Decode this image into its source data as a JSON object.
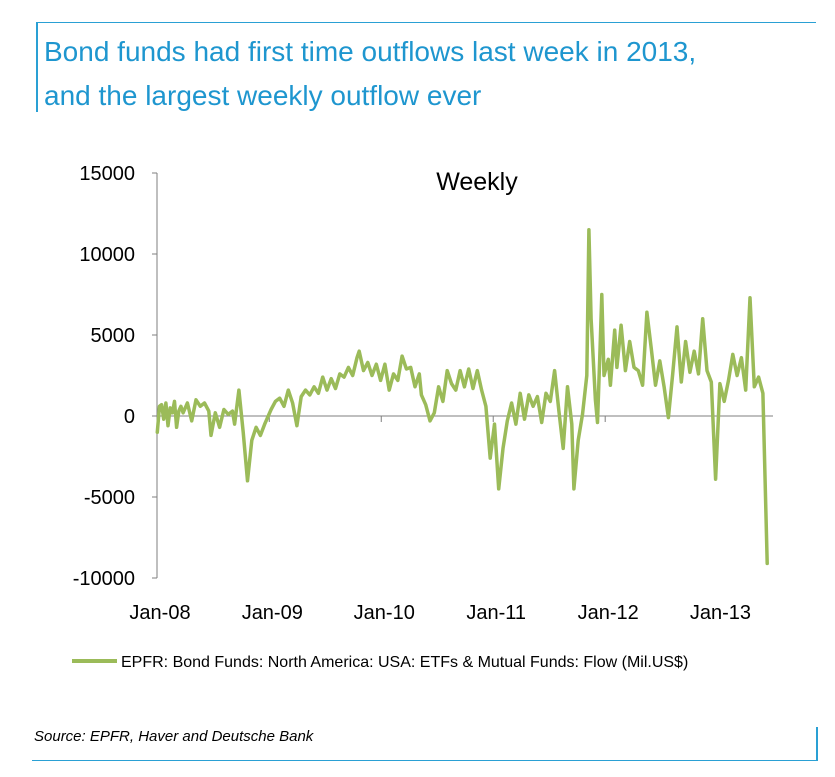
{
  "header": {
    "title_line1": "Bond funds had first time outflows last week in 2013,",
    "title_line2": "and the largest weekly outflow ever"
  },
  "source": "Source: EPFR, Haver and Deutsche Bank",
  "colors": {
    "accent": "#1e96cf",
    "series": "#9bbb59"
  },
  "chart_data": {
    "type": "line",
    "title": "Weekly",
    "xlabel": "",
    "ylabel": "",
    "ylim": [
      -10000,
      15000
    ],
    "y_ticks": [
      "15000",
      "10000",
      "5000",
      "0",
      "-5000",
      "-10000"
    ],
    "x_ticks": [
      "Jan-08",
      "Jan-09",
      "Jan-10",
      "Jan-11",
      "Jan-12",
      "Jan-13"
    ],
    "grid": false,
    "legend_position": "bottom",
    "series": [
      {
        "name": "EPFR: Bond Funds: North America: USA: ETFs & Mutual Funds: Flow (Mil.US$)",
        "points": [
          [
            "2008-01-02",
            -1000
          ],
          [
            "2008-01-09",
            600
          ],
          [
            "2008-01-16",
            700
          ],
          [
            "2008-01-23",
            -200
          ],
          [
            "2008-01-30",
            800
          ],
          [
            "2008-02-06",
            -600
          ],
          [
            "2008-02-13",
            500
          ],
          [
            "2008-02-20",
            200
          ],
          [
            "2008-02-27",
            900
          ],
          [
            "2008-03-05",
            -700
          ],
          [
            "2008-03-12",
            300
          ],
          [
            "2008-03-19",
            600
          ],
          [
            "2008-03-26",
            200
          ],
          [
            "2008-04-09",
            800
          ],
          [
            "2008-04-23",
            -300
          ],
          [
            "2008-05-07",
            1000
          ],
          [
            "2008-05-21",
            600
          ],
          [
            "2008-06-04",
            800
          ],
          [
            "2008-06-18",
            300
          ],
          [
            "2008-06-25",
            -1200
          ],
          [
            "2008-07-09",
            200
          ],
          [
            "2008-07-23",
            -700
          ],
          [
            "2008-08-06",
            400
          ],
          [
            "2008-08-20",
            100
          ],
          [
            "2008-09-03",
            300
          ],
          [
            "2008-09-10",
            -500
          ],
          [
            "2008-09-24",
            1600
          ],
          [
            "2008-10-08",
            -1000
          ],
          [
            "2008-10-22",
            -4000
          ],
          [
            "2008-11-05",
            -1500
          ],
          [
            "2008-11-19",
            -700
          ],
          [
            "2008-12-03",
            -1200
          ],
          [
            "2008-12-17",
            -500
          ],
          [
            "2009-01-07",
            400
          ],
          [
            "2009-01-21",
            900
          ],
          [
            "2009-02-04",
            1100
          ],
          [
            "2009-02-18",
            600
          ],
          [
            "2009-03-04",
            1600
          ],
          [
            "2009-03-18",
            800
          ],
          [
            "2009-04-01",
            -600
          ],
          [
            "2009-04-15",
            1200
          ],
          [
            "2009-04-29",
            1600
          ],
          [
            "2009-05-13",
            1300
          ],
          [
            "2009-05-27",
            1800
          ],
          [
            "2009-06-10",
            1400
          ],
          [
            "2009-06-24",
            2400
          ],
          [
            "2009-07-08",
            1600
          ],
          [
            "2009-07-22",
            2300
          ],
          [
            "2009-08-05",
            1700
          ],
          [
            "2009-08-19",
            2600
          ],
          [
            "2009-09-02",
            2400
          ],
          [
            "2009-09-16",
            3000
          ],
          [
            "2009-09-30",
            2500
          ],
          [
            "2009-10-14",
            3600
          ],
          [
            "2009-10-21",
            4000
          ],
          [
            "2009-11-04",
            2800
          ],
          [
            "2009-11-18",
            3300
          ],
          [
            "2009-12-02",
            2500
          ],
          [
            "2009-12-16",
            3200
          ],
          [
            "2009-12-30",
            2200
          ],
          [
            "2010-01-13",
            3200
          ],
          [
            "2010-01-27",
            1600
          ],
          [
            "2010-02-10",
            2600
          ],
          [
            "2010-02-24",
            2200
          ],
          [
            "2010-03-10",
            3700
          ],
          [
            "2010-03-24",
            2900
          ],
          [
            "2010-04-07",
            3000
          ],
          [
            "2010-04-21",
            1800
          ],
          [
            "2010-05-05",
            2600
          ],
          [
            "2010-05-12",
            1300
          ],
          [
            "2010-05-26",
            700
          ],
          [
            "2010-06-09",
            -300
          ],
          [
            "2010-06-23",
            200
          ],
          [
            "2010-07-07",
            1800
          ],
          [
            "2010-07-21",
            900
          ],
          [
            "2010-08-04",
            2800
          ],
          [
            "2010-08-18",
            2000
          ],
          [
            "2010-09-01",
            1600
          ],
          [
            "2010-09-15",
            2800
          ],
          [
            "2010-09-29",
            1800
          ],
          [
            "2010-10-13",
            2900
          ],
          [
            "2010-10-27",
            1700
          ],
          [
            "2010-11-10",
            2800
          ],
          [
            "2010-11-24",
            1600
          ],
          [
            "2010-12-08",
            600
          ],
          [
            "2010-12-22",
            -2600
          ],
          [
            "2011-01-05",
            -500
          ],
          [
            "2011-01-19",
            -4500
          ],
          [
            "2011-02-02",
            -2000
          ],
          [
            "2011-02-16",
            -300
          ],
          [
            "2011-03-02",
            800
          ],
          [
            "2011-03-16",
            -500
          ],
          [
            "2011-03-30",
            1400
          ],
          [
            "2011-04-13",
            -200
          ],
          [
            "2011-04-27",
            1300
          ],
          [
            "2011-05-11",
            600
          ],
          [
            "2011-05-25",
            1200
          ],
          [
            "2011-06-08",
            -400
          ],
          [
            "2011-06-22",
            1400
          ],
          [
            "2011-07-06",
            900
          ],
          [
            "2011-07-20",
            2800
          ],
          [
            "2011-08-03",
            300
          ],
          [
            "2011-08-17",
            -2000
          ],
          [
            "2011-08-31",
            1800
          ],
          [
            "2011-09-14",
            -500
          ],
          [
            "2011-09-21",
            -4500
          ],
          [
            "2011-10-05",
            -1500
          ],
          [
            "2011-10-19",
            100
          ],
          [
            "2011-11-02",
            2500
          ],
          [
            "2011-11-09",
            11500
          ],
          [
            "2011-11-16",
            6000
          ],
          [
            "2011-11-30",
            1000
          ],
          [
            "2011-12-07",
            -400
          ],
          [
            "2011-12-14",
            3500
          ],
          [
            "2011-12-21",
            7500
          ],
          [
            "2011-12-28",
            2500
          ],
          [
            "2012-01-11",
            3500
          ],
          [
            "2012-01-18",
            1900
          ],
          [
            "2012-02-01",
            5300
          ],
          [
            "2012-02-08",
            3000
          ],
          [
            "2012-02-22",
            5600
          ],
          [
            "2012-03-07",
            2800
          ],
          [
            "2012-03-21",
            4600
          ],
          [
            "2012-04-04",
            3000
          ],
          [
            "2012-04-18",
            2800
          ],
          [
            "2012-05-02",
            1900
          ],
          [
            "2012-05-16",
            6400
          ],
          [
            "2012-05-30",
            4200
          ],
          [
            "2012-06-13",
            1900
          ],
          [
            "2012-06-27",
            3400
          ],
          [
            "2012-07-11",
            1800
          ],
          [
            "2012-07-25",
            -100
          ],
          [
            "2012-08-08",
            2600
          ],
          [
            "2012-08-22",
            5500
          ],
          [
            "2012-09-05",
            2100
          ],
          [
            "2012-09-19",
            4600
          ],
          [
            "2012-10-03",
            2700
          ],
          [
            "2012-10-17",
            4000
          ],
          [
            "2012-10-31",
            2600
          ],
          [
            "2012-11-14",
            6000
          ],
          [
            "2012-11-28",
            2800
          ],
          [
            "2012-12-12",
            2100
          ],
          [
            "2012-12-26",
            -3900
          ],
          [
            "2013-01-09",
            2000
          ],
          [
            "2013-01-23",
            900
          ],
          [
            "2013-02-06",
            2200
          ],
          [
            "2013-02-20",
            3800
          ],
          [
            "2013-03-06",
            2500
          ],
          [
            "2013-03-20",
            3600
          ],
          [
            "2013-04-03",
            1600
          ],
          [
            "2013-04-17",
            7300
          ],
          [
            "2013-05-01",
            1800
          ],
          [
            "2013-05-15",
            2400
          ],
          [
            "2013-05-29",
            1400
          ],
          [
            "2013-06-12",
            -9100
          ]
        ]
      }
    ]
  }
}
